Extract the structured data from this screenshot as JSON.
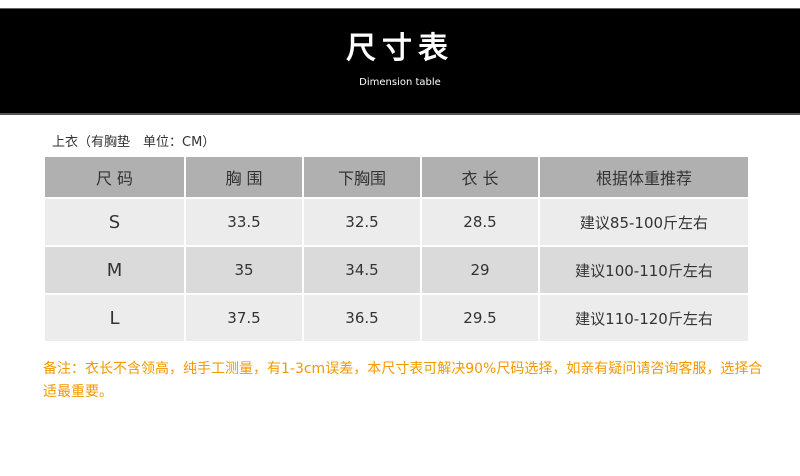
{
  "header": {
    "title": "尺寸表",
    "subtitle": "Dimension table"
  },
  "caption": "上衣（有胸垫　单位：CM）",
  "table": {
    "headers": [
      "尺 码",
      "胸 围",
      "下胸围",
      "衣 长",
      "根据体重推荐"
    ],
    "rows": [
      [
        "S",
        "33.5",
        "32.5",
        "28.5",
        "建议85-100斤左右"
      ],
      [
        "M",
        "35",
        "34.5",
        "29",
        "建议100-110斤左右"
      ],
      [
        "L",
        "37.5",
        "36.5",
        "29.5",
        "建议110-120斤左右"
      ]
    ]
  },
  "note": "备注：衣长不含领高，纯手工测量，有1-3cm误差，本尺寸表可解决90%尺码选择，如亲有疑问请咨询客服，选择合适最重要。",
  "colors": {
    "note": "#f39800",
    "header_bg": "#b0b0b0",
    "banner": "#000000"
  }
}
